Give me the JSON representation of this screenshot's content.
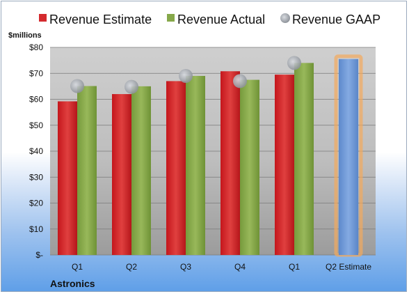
{
  "chart_data": {
    "type": "bar",
    "company": "Astronics",
    "ylabel": "$millions",
    "ylim": [
      0,
      80
    ],
    "yticks": [
      {
        "v": 0,
        "label": "$-"
      },
      {
        "v": 10,
        "label": "$10"
      },
      {
        "v": 20,
        "label": "$20"
      },
      {
        "v": 30,
        "label": "$30"
      },
      {
        "v": 40,
        "label": "$40"
      },
      {
        "v": 50,
        "label": "$50"
      },
      {
        "v": 60,
        "label": "$60"
      },
      {
        "v": 70,
        "label": "$70"
      },
      {
        "v": 80,
        "label": "$80"
      }
    ],
    "categories": [
      "Q1",
      "Q2",
      "Q3",
      "Q4",
      "Q1",
      "Q2 Estimate"
    ],
    "legend": {
      "estimate": "Revenue Estimate",
      "actual": "Revenue Actual",
      "gaap": "Revenue GAAP"
    },
    "series": [
      {
        "name": "Revenue Estimate",
        "color": "#d42a2e",
        "values": [
          59.2,
          62.0,
          67.0,
          70.8,
          69.5,
          null
        ]
      },
      {
        "name": "Revenue Actual",
        "color": "#86a84a",
        "values": [
          65.1,
          65.0,
          69.0,
          67.5,
          74.0,
          null
        ]
      },
      {
        "name": "Revenue GAAP",
        "color": "#9aa0a8",
        "values": [
          65.1,
          64.8,
          69.0,
          67.0,
          74.0,
          null
        ]
      }
    ],
    "estimate_bar": {
      "category": "Q2 Estimate",
      "value": 75.5,
      "color": "#6f9ad6",
      "glow": "#f4a95c"
    },
    "grid": true,
    "legend_position": "top"
  }
}
